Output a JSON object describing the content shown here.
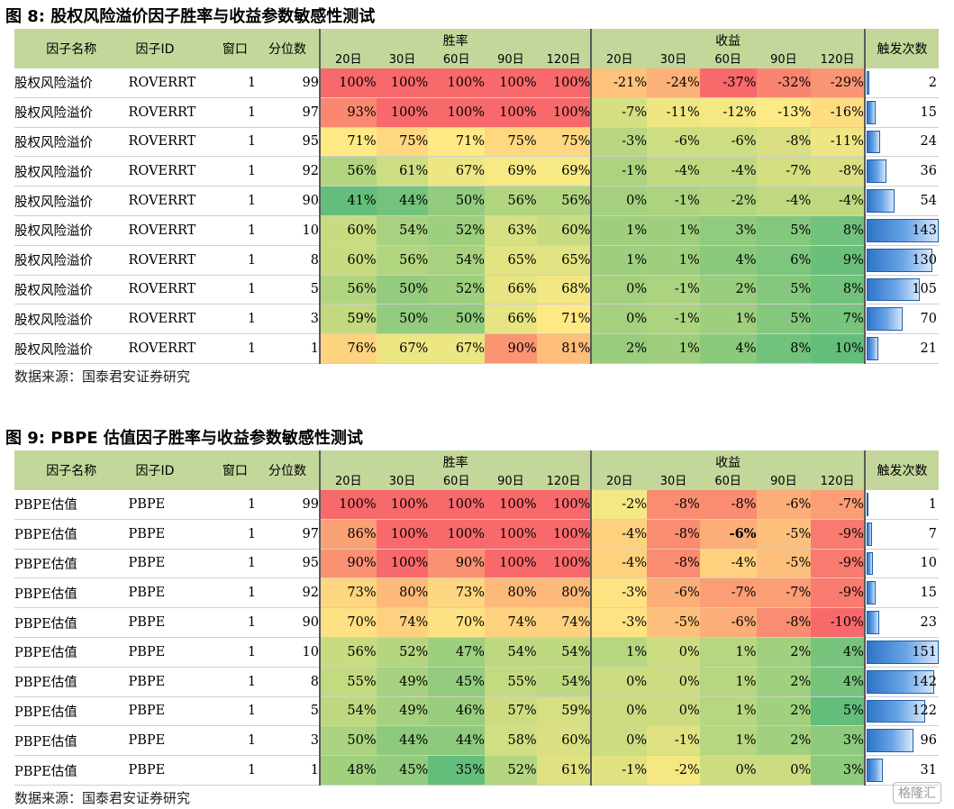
{
  "columns": {
    "factor_name": "因子名称",
    "factor_id": "因子ID",
    "window": "窗口",
    "quantile": "分位数",
    "win_rate": "胜率",
    "returns": "收益",
    "trigger_count": "触发次数",
    "periods": [
      "20日",
      "30日",
      "60日",
      "90日",
      "120日"
    ]
  },
  "tables": [
    {
      "title": "图 8:  股权风险溢价因子胜率与收益参数敏感性测试",
      "source": "数据来源：国泰君安证券研究",
      "max_trigger": 143,
      "rows": [
        {
          "name": "股权风险溢价",
          "id": "ROVERRT",
          "window": "1",
          "quantile": "99",
          "win": [
            "100%",
            "100%",
            "100%",
            "100%",
            "100%"
          ],
          "win_v": [
            100,
            100,
            100,
            100,
            100
          ],
          "ret": [
            "-21%",
            "-24%",
            "-37%",
            "-32%",
            "-29%"
          ],
          "ret_v": [
            -21,
            -24,
            -37,
            -32,
            -29
          ],
          "trigger": "2",
          "trigger_v": 2
        },
        {
          "name": "股权风险溢价",
          "id": "ROVERRT",
          "window": "1",
          "quantile": "97",
          "win": [
            "93%",
            "100%",
            "100%",
            "100%",
            "100%"
          ],
          "win_v": [
            93,
            100,
            100,
            100,
            100
          ],
          "ret": [
            "-7%",
            "-11%",
            "-12%",
            "-13%",
            "-16%"
          ],
          "ret_v": [
            -7,
            -11,
            -12,
            -13,
            -16
          ],
          "trigger": "15",
          "trigger_v": 15
        },
        {
          "name": "股权风险溢价",
          "id": "ROVERRT",
          "window": "1",
          "quantile": "95",
          "win": [
            "71%",
            "75%",
            "71%",
            "75%",
            "75%"
          ],
          "win_v": [
            71,
            75,
            71,
            75,
            75
          ],
          "ret": [
            "-3%",
            "-6%",
            "-6%",
            "-8%",
            "-11%"
          ],
          "ret_v": [
            -3,
            -6,
            -6,
            -8,
            -11
          ],
          "trigger": "24",
          "trigger_v": 24
        },
        {
          "name": "股权风险溢价",
          "id": "ROVERRT",
          "window": "1",
          "quantile": "92",
          "win": [
            "56%",
            "61%",
            "67%",
            "69%",
            "69%"
          ],
          "win_v": [
            56,
            61,
            67,
            69,
            69
          ],
          "ret": [
            "-1%",
            "-4%",
            "-4%",
            "-7%",
            "-8%"
          ],
          "ret_v": [
            -1,
            -4,
            -4,
            -7,
            -8
          ],
          "trigger": "36",
          "trigger_v": 36
        },
        {
          "name": "股权风险溢价",
          "id": "ROVERRT",
          "window": "1",
          "quantile": "90",
          "win": [
            "41%",
            "44%",
            "50%",
            "56%",
            "56%"
          ],
          "win_v": [
            41,
            44,
            50,
            56,
            56
          ],
          "ret": [
            "0%",
            "-1%",
            "-2%",
            "-4%",
            "-4%"
          ],
          "ret_v": [
            0,
            -1,
            -2,
            -4,
            -4
          ],
          "trigger": "54",
          "trigger_v": 54
        },
        {
          "name": "股权风险溢价",
          "id": "ROVERRT",
          "window": "1",
          "quantile": "10",
          "win": [
            "60%",
            "54%",
            "52%",
            "63%",
            "60%"
          ],
          "win_v": [
            60,
            54,
            52,
            63,
            60
          ],
          "ret": [
            "1%",
            "1%",
            "3%",
            "5%",
            "8%"
          ],
          "ret_v": [
            1,
            1,
            3,
            5,
            8
          ],
          "trigger": "143",
          "trigger_v": 143
        },
        {
          "name": "股权风险溢价",
          "id": "ROVERRT",
          "window": "1",
          "quantile": "8",
          "win": [
            "60%",
            "56%",
            "54%",
            "65%",
            "65%"
          ],
          "win_v": [
            60,
            56,
            54,
            65,
            65
          ],
          "ret": [
            "1%",
            "1%",
            "4%",
            "6%",
            "9%"
          ],
          "ret_v": [
            1,
            1,
            4,
            6,
            9
          ],
          "trigger": "130",
          "trigger_v": 130
        },
        {
          "name": "股权风险溢价",
          "id": "ROVERRT",
          "window": "1",
          "quantile": "5",
          "win": [
            "56%",
            "50%",
            "52%",
            "66%",
            "68%"
          ],
          "win_v": [
            56,
            50,
            52,
            66,
            68
          ],
          "ret": [
            "0%",
            "-1%",
            "2%",
            "5%",
            "8%"
          ],
          "ret_v": [
            0,
            -1,
            2,
            5,
            8
          ],
          "trigger": "105",
          "trigger_v": 105
        },
        {
          "name": "股权风险溢价",
          "id": "ROVERRT",
          "window": "1",
          "quantile": "3",
          "win": [
            "59%",
            "50%",
            "50%",
            "66%",
            "71%"
          ],
          "win_v": [
            59,
            50,
            50,
            66,
            71
          ],
          "ret": [
            "0%",
            "-1%",
            "1%",
            "5%",
            "7%"
          ],
          "ret_v": [
            0,
            -1,
            1,
            5,
            7
          ],
          "trigger": "70",
          "trigger_v": 70
        },
        {
          "name": "股权风险溢价",
          "id": "ROVERRT",
          "window": "1",
          "quantile": "1",
          "win": [
            "76%",
            "67%",
            "67%",
            "90%",
            "81%"
          ],
          "win_v": [
            76,
            67,
            67,
            90,
            81
          ],
          "ret": [
            "2%",
            "1%",
            "4%",
            "8%",
            "10%"
          ],
          "ret_v": [
            2,
            1,
            4,
            8,
            10
          ],
          "trigger": "21",
          "trigger_v": 21
        }
      ]
    },
    {
      "title": "图 9:  PBPE 估值因子胜率与收益参数敏感性测试",
      "source": "数据来源：国泰君安证券研究",
      "max_trigger": 151,
      "rows": [
        {
          "name": "PBPE估值",
          "id": "PBPE",
          "window": "1",
          "quantile": "99",
          "win": [
            "100%",
            "100%",
            "100%",
            "100%",
            "100%"
          ],
          "win_v": [
            100,
            100,
            100,
            100,
            100
          ],
          "ret": [
            "-2%",
            "-8%",
            "-8%",
            "-6%",
            "-7%"
          ],
          "ret_v": [
            -2,
            -8,
            -8,
            -6,
            -7
          ],
          "trigger": "1",
          "trigger_v": 1
        },
        {
          "name": "PBPE估值",
          "id": "PBPE",
          "window": "1",
          "quantile": "97",
          "win": [
            "86%",
            "100%",
            "100%",
            "100%",
            "100%"
          ],
          "win_v": [
            86,
            100,
            100,
            100,
            100
          ],
          "ret": [
            "-4%",
            "-8%",
            "-6%",
            "-5%",
            "-9%"
          ],
          "ret_v": [
            -4,
            -8,
            -6,
            -5,
            -9
          ],
          "bold_ret": 2,
          "trigger": "7",
          "trigger_v": 7
        },
        {
          "name": "PBPE估值",
          "id": "PBPE",
          "window": "1",
          "quantile": "95",
          "win": [
            "90%",
            "100%",
            "90%",
            "100%",
            "100%"
          ],
          "win_v": [
            90,
            100,
            90,
            100,
            100
          ],
          "ret": [
            "-4%",
            "-8%",
            "-4%",
            "-5%",
            "-9%"
          ],
          "ret_v": [
            -4,
            -8,
            -4,
            -5,
            -9
          ],
          "trigger": "10",
          "trigger_v": 10
        },
        {
          "name": "PBPE估值",
          "id": "PBPE",
          "window": "1",
          "quantile": "92",
          "win": [
            "73%",
            "80%",
            "73%",
            "80%",
            "80%"
          ],
          "win_v": [
            73,
            80,
            73,
            80,
            80
          ],
          "ret": [
            "-3%",
            "-6%",
            "-7%",
            "-7%",
            "-9%"
          ],
          "ret_v": [
            -3,
            -6,
            -7,
            -7,
            -9
          ],
          "trigger": "15",
          "trigger_v": 15
        },
        {
          "name": "PBPE估值",
          "id": "PBPE",
          "window": "1",
          "quantile": "90",
          "win": [
            "70%",
            "74%",
            "70%",
            "74%",
            "74%"
          ],
          "win_v": [
            70,
            74,
            70,
            74,
            74
          ],
          "ret": [
            "-3%",
            "-5%",
            "-6%",
            "-8%",
            "-10%"
          ],
          "ret_v": [
            -3,
            -5,
            -6,
            -8,
            -10
          ],
          "trigger": "23",
          "trigger_v": 23
        },
        {
          "name": "PBPE估值",
          "id": "PBPE",
          "window": "1",
          "quantile": "10",
          "win": [
            "56%",
            "52%",
            "47%",
            "54%",
            "54%"
          ],
          "win_v": [
            56,
            52,
            47,
            54,
            54
          ],
          "ret": [
            "1%",
            "0%",
            "1%",
            "2%",
            "4%"
          ],
          "ret_v": [
            1,
            0,
            1,
            2,
            4
          ],
          "trigger": "151",
          "trigger_v": 151
        },
        {
          "name": "PBPE估值",
          "id": "PBPE",
          "window": "1",
          "quantile": "8",
          "win": [
            "55%",
            "49%",
            "45%",
            "55%",
            "54%"
          ],
          "win_v": [
            55,
            49,
            45,
            55,
            54
          ],
          "ret": [
            "0%",
            "0%",
            "1%",
            "2%",
            "4%"
          ],
          "ret_v": [
            0,
            0,
            1,
            2,
            4
          ],
          "trigger": "142",
          "trigger_v": 142
        },
        {
          "name": "PBPE估值",
          "id": "PBPE",
          "window": "1",
          "quantile": "5",
          "win": [
            "54%",
            "49%",
            "46%",
            "57%",
            "59%"
          ],
          "win_v": [
            54,
            49,
            46,
            57,
            59
          ],
          "ret": [
            "0%",
            "0%",
            "1%",
            "2%",
            "5%"
          ],
          "ret_v": [
            0,
            0,
            1,
            2,
            5
          ],
          "trigger": "122",
          "trigger_v": 122
        },
        {
          "name": "PBPE估值",
          "id": "PBPE",
          "window": "1",
          "quantile": "3",
          "win": [
            "50%",
            "44%",
            "44%",
            "58%",
            "60%"
          ],
          "win_v": [
            50,
            44,
            44,
            58,
            60
          ],
          "ret": [
            "0%",
            "-1%",
            "1%",
            "2%",
            "3%"
          ],
          "ret_v": [
            0,
            -1,
            1,
            2,
            3
          ],
          "trigger": "96",
          "trigger_v": 96
        },
        {
          "name": "PBPE估值",
          "id": "PBPE",
          "window": "1",
          "quantile": "1",
          "win": [
            "48%",
            "45%",
            "35%",
            "52%",
            "61%"
          ],
          "win_v": [
            48,
            45,
            35,
            52,
            61
          ],
          "ret": [
            "-1%",
            "-2%",
            "0%",
            "0%",
            "3%"
          ],
          "ret_v": [
            -1,
            -2,
            0,
            0,
            3
          ],
          "trigger": "31",
          "trigger_v": 31
        }
      ]
    }
  ],
  "watermark": "格隆汇"
}
